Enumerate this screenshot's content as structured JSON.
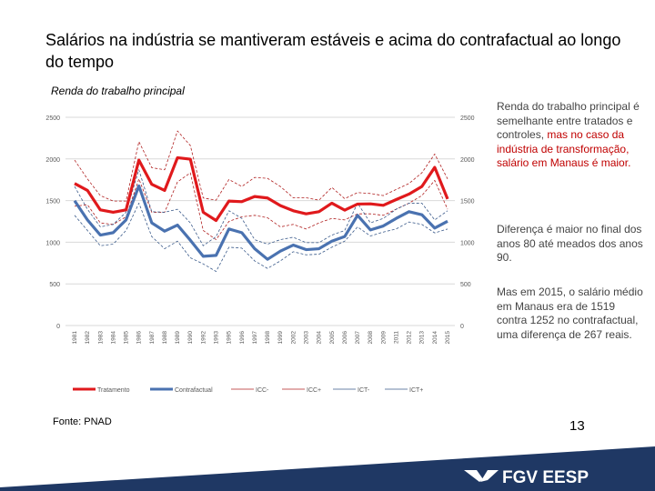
{
  "title": "Salários na indústria se mantiveram estáveis e acima do contrafactual ao longo do tempo",
  "side_text": {
    "p1_plain": "Renda do trabalho principal é semelhante entre tratados e controles, ",
    "p1_highlight": "mas no caso da indústria de transformação, salário em Manaus é maior.",
    "p2": "Diferença é maior no final dos anos 80 até meados dos anos 90.",
    "p3": "Mas em 2015, o salário médio em Manaus era de 1519 contra 1252 no contrafactual, uma diferença de 267 reais."
  },
  "source": "Fonte: PNAD",
  "page_number": "13",
  "logo_text": "FGV EESP",
  "colors": {
    "tratamento": "#e0191c",
    "contrafactual": "#4a72b0",
    "icc": "#b02020",
    "ict": "#3a5a8a",
    "highlight": "#c00000",
    "band": "#1f3864"
  },
  "chart_data": {
    "type": "line",
    "title": "Renda do trabalho principal",
    "ylim": [
      0,
      2500
    ],
    "yticks": [
      "0",
      "500",
      "1000",
      "1500",
      "2000",
      "2500"
    ],
    "secondary_y_axis": true,
    "grid": true,
    "legend_position": "bottom",
    "categories": [
      "1981",
      "1982",
      "1983",
      "1984",
      "1985",
      "1986",
      "1987",
      "1988",
      "1989",
      "1990",
      "1992",
      "1993",
      "1995",
      "1996",
      "1997",
      "1998",
      "1999",
      "2002",
      "2003",
      "2004",
      "2005",
      "2006",
      "2007",
      "2008",
      "2009",
      "2011",
      "2012",
      "2013",
      "2014",
      "2015"
    ],
    "series": [
      {
        "name": "Tratamento",
        "style": "thick-solid",
        "color": "#e0191c",
        "values": [
          1705,
          1622,
          1388,
          1360,
          1388,
          1986,
          1695,
          1622,
          2015,
          1997,
          1360,
          1261,
          1494,
          1487,
          1549,
          1531,
          1440,
          1378,
          1341,
          1367,
          1469,
          1385,
          1458,
          1461,
          1443,
          1512,
          1578,
          1669,
          1899,
          1519
        ]
      },
      {
        "name": "Contrafactual",
        "style": "thick-solid",
        "color": "#4a72b0",
        "values": [
          1498,
          1268,
          1086,
          1115,
          1268,
          1676,
          1232,
          1133,
          1206,
          1024,
          831,
          842,
          1159,
          1115,
          922,
          795,
          893,
          966,
          911,
          922,
          1013,
          1068,
          1323,
          1148,
          1195,
          1286,
          1367,
          1330,
          1170,
          1252
        ]
      },
      {
        "name": "ICC-",
        "style": "dashed",
        "color": "#b02020",
        "values": [
          1432,
          1450,
          1232,
          1214,
          1305,
          1760,
          1360,
          1360,
          1724,
          1833,
          1141,
          1031,
          1250,
          1305,
          1323,
          1294,
          1184,
          1214,
          1159,
          1232,
          1286,
          1268,
          1341,
          1341,
          1323,
          1396,
          1469,
          1560,
          1742,
          1396
        ]
      },
      {
        "name": "ICC+",
        "style": "dashed",
        "color": "#b02020",
        "values": [
          1986,
          1760,
          1560,
          1494,
          1494,
          2208,
          1895,
          1870,
          2336,
          2161,
          1531,
          1505,
          1753,
          1669,
          1778,
          1767,
          1669,
          1534,
          1534,
          1505,
          1658,
          1523,
          1596,
          1585,
          1560,
          1633,
          1705,
          1833,
          2059,
          1760
        ]
      },
      {
        "name": "ICT-",
        "style": "dashed",
        "color": "#3a5a8a",
        "values": [
          1323,
          1141,
          958,
          977,
          1141,
          1469,
          1068,
          922,
          1013,
          813,
          740,
          649,
          940,
          929,
          776,
          685,
          776,
          886,
          849,
          856,
          940,
          1013,
          1184,
          1075,
          1122,
          1159,
          1243,
          1214,
          1112,
          1159
        ]
      },
      {
        "name": "ICT+",
        "style": "dashed",
        "color": "#3a5a8a",
        "values": [
          1669,
          1396,
          1184,
          1214,
          1360,
          1870,
          1367,
          1360,
          1396,
          1232,
          958,
          1068,
          1378,
          1286,
          1031,
          977,
          1031,
          1060,
          995,
          995,
          1086,
          1141,
          1469,
          1232,
          1286,
          1396,
          1469,
          1469,
          1268,
          1378
        ]
      }
    ]
  }
}
